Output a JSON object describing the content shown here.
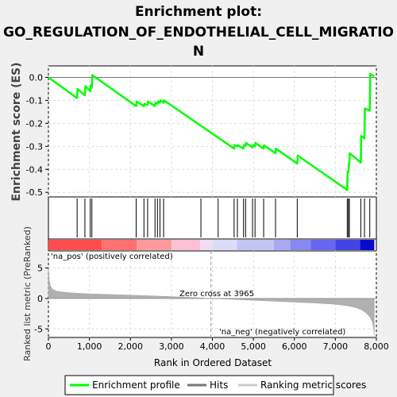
{
  "title_lines": [
    "Enrichment plot:",
    "GO_REGULATION_OF_ENDOTHELIAL_CELL_MIGRATIO",
    "N"
  ],
  "colors": {
    "enrichment_line": "#00ff00",
    "hits": "#000000",
    "metric_fill": "#b0b0b0",
    "pos_label": "#ff0000",
    "neg_label": "#0000ff",
    "zero_line": "#c0c0c0",
    "grid": "#dddddd"
  },
  "chart_data": [
    {
      "type": "line",
      "panel": "enrichment",
      "ylabel": "Enrichment score (ES)",
      "xlim": [
        0,
        8000
      ],
      "ylim": [
        -0.52,
        0.05
      ],
      "yticks": [
        0.0,
        -0.1,
        -0.2,
        -0.3,
        -0.4,
        -0.5
      ],
      "ytick_labels": [
        "0.0",
        "-0.1",
        "-0.2",
        "-0.3",
        "-0.4",
        "-0.5"
      ],
      "grid": true,
      "series": [
        {
          "name": "Enrichment profile",
          "x": [
            0,
            700,
            710,
            890,
            900,
            1020,
            1030,
            1060,
            1070,
            2140,
            2150,
            2330,
            2340,
            2420,
            2430,
            2600,
            2610,
            2660,
            2670,
            2720,
            2730,
            2810,
            2820,
            4530,
            4540,
            4610,
            4620,
            4760,
            4770,
            4810,
            4820,
            4980,
            4990,
            5040,
            5050,
            5250,
            5260,
            5540,
            5550,
            6070,
            6080,
            7290,
            7300,
            7320,
            7330,
            7340,
            7350,
            7620,
            7630,
            7710,
            7720,
            7840,
            7850,
            7950
          ],
          "y": [
            0.0,
            -0.09,
            -0.05,
            -0.078,
            -0.038,
            -0.06,
            -0.035,
            -0.045,
            0.01,
            -0.125,
            -0.105,
            -0.125,
            -0.115,
            -0.12,
            -0.105,
            -0.125,
            -0.11,
            -0.115,
            -0.105,
            -0.11,
            -0.1,
            -0.11,
            -0.1,
            -0.31,
            -0.295,
            -0.3,
            -0.295,
            -0.31,
            -0.295,
            -0.298,
            -0.285,
            -0.305,
            -0.295,
            -0.3,
            -0.285,
            -0.31,
            -0.295,
            -0.33,
            -0.31,
            -0.375,
            -0.34,
            -0.49,
            -0.41,
            -0.41,
            -0.375,
            -0.375,
            -0.33,
            -0.37,
            -0.255,
            -0.265,
            -0.135,
            -0.145,
            0.015,
            0.005
          ]
        }
      ]
    },
    {
      "type": "hits",
      "panel": "hits",
      "name": "Hits",
      "x": [
        700,
        890,
        1020,
        1060,
        2140,
        2330,
        2420,
        2600,
        2660,
        2720,
        2810,
        3720,
        4140,
        4530,
        4610,
        4760,
        4810,
        4980,
        5040,
        5250,
        5540,
        6070,
        7290,
        7320,
        7340,
        7620,
        7710,
        7840
      ]
    },
    {
      "type": "heatmap",
      "panel": "rank-colorbar",
      "pos_label": "'na_pos' (positively correlated)",
      "neg_label": "'na_neg' (negatively correlated)",
      "segments": [
        {
          "x0": 0,
          "x1": 1300,
          "color": "#ff4d4d"
        },
        {
          "x0": 1300,
          "x1": 2150,
          "color": "#ff7070"
        },
        {
          "x0": 2150,
          "x1": 3000,
          "color": "#ff9a9a"
        },
        {
          "x0": 3000,
          "x1": 3700,
          "color": "#ffc0d6"
        },
        {
          "x0": 3700,
          "x1": 4000,
          "color": "#f2dcf2"
        },
        {
          "x0": 4000,
          "x1": 4600,
          "color": "#dcdcf8"
        },
        {
          "x0": 4600,
          "x1": 5500,
          "color": "#c4c4f6"
        },
        {
          "x0": 5500,
          "x1": 5900,
          "color": "#a8a8f4"
        },
        {
          "x0": 5900,
          "x1": 6400,
          "color": "#8888f2"
        },
        {
          "x0": 6400,
          "x1": 7000,
          "color": "#6666ee"
        },
        {
          "x0": 7000,
          "x1": 7600,
          "color": "#4444e6"
        },
        {
          "x0": 7600,
          "x1": 7950,
          "color": "#0a0acc"
        }
      ]
    },
    {
      "type": "area",
      "panel": "ranked-metric",
      "xlabel": "Rank in Ordered Dataset",
      "ylabel": "Ranked list metric (PreRanked)",
      "xlim": [
        0,
        8000
      ],
      "ylim": [
        -6.4,
        7.8
      ],
      "yticks": [
        5,
        0,
        -5
      ],
      "ytick_labels": [
        "5",
        "0",
        "-5"
      ],
      "xticks": [
        0,
        1000,
        2000,
        3000,
        4000,
        5000,
        6000,
        7000,
        8000
      ],
      "xtick_labels": [
        "0",
        "1,000",
        "2,000",
        "3,000",
        "4,000",
        "5,000",
        "6,000",
        "7,000",
        "8,000"
      ],
      "zero_cross": 3965,
      "zero_cross_label": "Zero cross at 3965",
      "x": [
        0,
        20,
        50,
        100,
        200,
        400,
        700,
        1000,
        1500,
        2000,
        2500,
        3000,
        3500,
        3965,
        4500,
        5000,
        5500,
        6000,
        6500,
        7000,
        7300,
        7500,
        7650,
        7750,
        7850,
        7900,
        7930,
        7950
      ],
      "values": [
        5.2,
        3.0,
        2.0,
        1.5,
        1.2,
        1.0,
        0.85,
        0.75,
        0.65,
        0.55,
        0.42,
        0.3,
        0.15,
        0.0,
        -0.15,
        -0.3,
        -0.45,
        -0.6,
        -0.75,
        -0.95,
        -1.2,
        -1.5,
        -1.9,
        -2.4,
        -3.1,
        -3.8,
        -4.8,
        -6.0
      ]
    }
  ],
  "legend": {
    "items": [
      {
        "label": "Enrichment profile",
        "swatch": "line",
        "color": "#00ff00"
      },
      {
        "label": "Hits",
        "swatch": "line",
        "color": "#777777"
      },
      {
        "label": "Ranking metric scores",
        "swatch": "line",
        "color": "#cccccc"
      }
    ]
  }
}
